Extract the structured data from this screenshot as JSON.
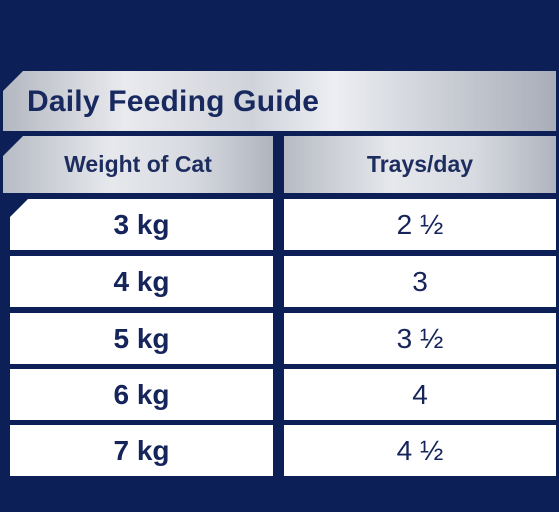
{
  "guide": {
    "title": "Daily Feeding Guide",
    "headers": {
      "weight": "Weight of Cat",
      "trays": "Trays/day"
    },
    "rows": [
      {
        "weight": "3 kg",
        "trays": "2 ½"
      },
      {
        "weight": "4 kg",
        "trays": "3"
      },
      {
        "weight": "5 kg",
        "trays": "3 ½"
      },
      {
        "weight": "6 kg",
        "trays": "4"
      },
      {
        "weight": "7 kg",
        "trays": "4 ½"
      }
    ]
  },
  "colors": {
    "background": "#0c1f56",
    "text": "#15245a",
    "row_fill": "#ffffff",
    "header_fill": "#d7dae0"
  }
}
